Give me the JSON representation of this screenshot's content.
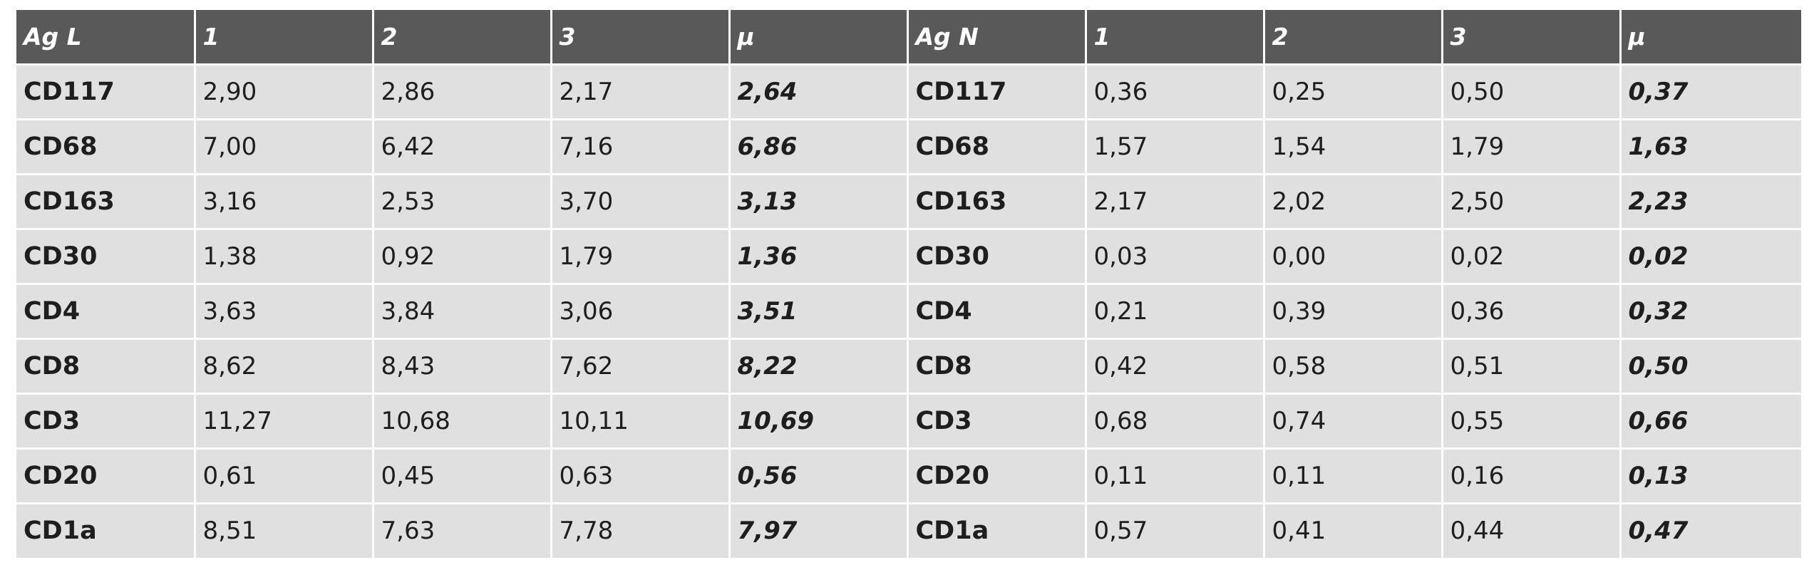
{
  "table": {
    "headers": [
      "Ag L",
      "1",
      "2",
      "3",
      "μ",
      "Ag N",
      "1",
      "2",
      "3",
      "μ"
    ],
    "rows": [
      [
        "CD117",
        "2,90",
        "2,86",
        "2,17",
        "2,64",
        "CD117",
        "0,36",
        "0,25",
        "0,50",
        "0,37"
      ],
      [
        "CD68",
        "7,00",
        "6,42",
        "7,16",
        "6,86",
        "CD68",
        "1,57",
        "1,54",
        "1,79",
        "1,63"
      ],
      [
        "CD163",
        "3,16",
        "2,53",
        "3,70",
        "3,13",
        "CD163",
        "2,17",
        "2,02",
        "2,50",
        "2,23"
      ],
      [
        "CD30",
        "1,38",
        "0,92",
        "1,79",
        "1,36",
        "CD30",
        "0,03",
        "0,00",
        "0,02",
        "0,02"
      ],
      [
        "CD4",
        "3,63",
        "3,84",
        "3,06",
        "3,51",
        "CD4",
        "0,21",
        "0,39",
        "0,36",
        "0,32"
      ],
      [
        "CD8",
        "8,62",
        "8,43",
        "7,62",
        "8,22",
        "CD8",
        "0,42",
        "0,58",
        "0,51",
        "0,50"
      ],
      [
        "CD3",
        "11,27",
        "10,68",
        "10,11",
        "10,69",
        "CD3",
        "0,68",
        "0,74",
        "0,55",
        "0,66"
      ],
      [
        "CD20",
        "0,61",
        "0,45",
        "0,63",
        "0,56",
        "CD20",
        "0,11",
        "0,11",
        "0,16",
        "0,13"
      ],
      [
        "CD1a",
        "8,51",
        "7,63",
        "7,78",
        "7,97",
        "CD1a",
        "0,57",
        "0,41",
        "0,44",
        "0,47"
      ]
    ]
  },
  "colors": {
    "header_bg": "#595959",
    "header_text": "#ffffff",
    "row_bg": "#e0e0e0",
    "cell_border": "#ffffff",
    "body_text": "#1e1e1e"
  }
}
